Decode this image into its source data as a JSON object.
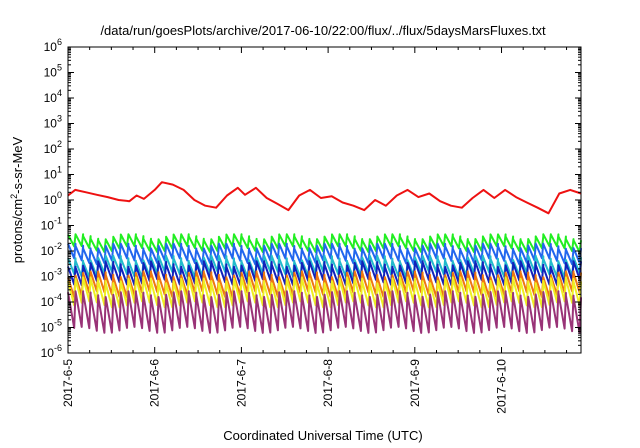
{
  "chart_data": {
    "type": "line",
    "title": "/data/run/goesPlots/archive/2017-06-10/22:00/flux/../flux/5daysMarsFluxes.txt",
    "xlabel": "Coordinated Universal Time (UTC)",
    "ylabel_base": "protons/cm",
    "ylabel_sup": "2",
    "ylabel_rest": "-s-sr-MeV",
    "yscale": "log",
    "ylim": [
      1e-06,
      1000000.0
    ],
    "xlim": [
      "2017-06-05T00:00",
      "2017-06-10T22:00"
    ],
    "x_ticks": [
      "2017-6-5",
      "2017-6-6",
      "2017-6-7",
      "2017-6-8",
      "2017-6-9",
      "2017-6-10"
    ],
    "y_ticks": [
      {
        "base": "10",
        "exp": "-6"
      },
      {
        "base": "10",
        "exp": "-5"
      },
      {
        "base": "10",
        "exp": "-4"
      },
      {
        "base": "10",
        "exp": "-3"
      },
      {
        "base": "10",
        "exp": "-2"
      },
      {
        "base": "10",
        "exp": "-1"
      },
      {
        "base": "10",
        "exp": "0"
      },
      {
        "base": "10",
        "exp": "1"
      },
      {
        "base": "10",
        "exp": "2"
      },
      {
        "base": "10",
        "exp": "3"
      },
      {
        "base": "10",
        "exp": "4"
      },
      {
        "base": "10",
        "exp": "5"
      },
      {
        "base": "10",
        "exp": "6"
      }
    ],
    "grid": false,
    "legend": "none",
    "series": [
      {
        "color": "#ee1111",
        "x": [
          "2017-06-05T00:00",
          "2017-06-05T02:00",
          "2017-06-05T05:00",
          "2017-06-05T08:00",
          "2017-06-05T11:00",
          "2017-06-05T14:00",
          "2017-06-05T17:00",
          "2017-06-05T19:00",
          "2017-06-05T21:00",
          "2017-06-06T00:00",
          "2017-06-06T02:00",
          "2017-06-06T05:00",
          "2017-06-06T08:00",
          "2017-06-06T11:00",
          "2017-06-06T14:00",
          "2017-06-06T17:00",
          "2017-06-06T20:00",
          "2017-06-06T23:00",
          "2017-06-07T01:00",
          "2017-06-07T04:00",
          "2017-06-07T07:00",
          "2017-06-07T10:00",
          "2017-06-07T13:00",
          "2017-06-07T16:00",
          "2017-06-07T19:00",
          "2017-06-07T22:00",
          "2017-06-08T01:00",
          "2017-06-08T04:00",
          "2017-06-08T07:00",
          "2017-06-08T10:00",
          "2017-06-08T13:00",
          "2017-06-08T16:00",
          "2017-06-08T19:00",
          "2017-06-08T22:00",
          "2017-06-09T01:00",
          "2017-06-09T04:00",
          "2017-06-09T07:00",
          "2017-06-09T10:00",
          "2017-06-09T13:00",
          "2017-06-09T16:00",
          "2017-06-09T19:00",
          "2017-06-09T22:00",
          "2017-06-10T01:00",
          "2017-06-10T04:00",
          "2017-06-10T07:00",
          "2017-06-10T10:00",
          "2017-06-10T13:00",
          "2017-06-10T16:00",
          "2017-06-10T19:00",
          "2017-06-10T22:00"
        ],
        "y": [
          1.5,
          2.5,
          2.0,
          1.6,
          1.3,
          1.0,
          0.9,
          1.5,
          1.1,
          2.5,
          5.0,
          4.0,
          2.5,
          1.0,
          0.6,
          0.5,
          1.5,
          3.0,
          1.6,
          3.0,
          1.2,
          0.7,
          0.4,
          1.5,
          2.5,
          1.2,
          1.4,
          0.8,
          0.6,
          0.4,
          1.0,
          0.6,
          1.5,
          2.5,
          1.3,
          1.8,
          0.9,
          0.6,
          0.5,
          1.2,
          2.5,
          1.2,
          2.5,
          1.3,
          0.8,
          0.5,
          0.3,
          1.8,
          2.5,
          1.8
        ]
      },
      {
        "color": "#22ee22",
        "base": 0.035,
        "low": 0.012
      },
      {
        "color": "#2266ee",
        "base": 0.015,
        "low": 0.004
      },
      {
        "color": "#22bbcc",
        "base": 0.005,
        "low": 0.0012
      },
      {
        "color": "#1122bb",
        "base": 0.003,
        "low": 0.0006
      },
      {
        "color": "#ee7711",
        "base": 0.0012,
        "low": 0.0002
      },
      {
        "color": "#eeee22",
        "base": 0.0007,
        "low": 8e-05
      },
      {
        "color": "#993377",
        "base": 0.0002,
        "low": 8e-06
      }
    ]
  }
}
